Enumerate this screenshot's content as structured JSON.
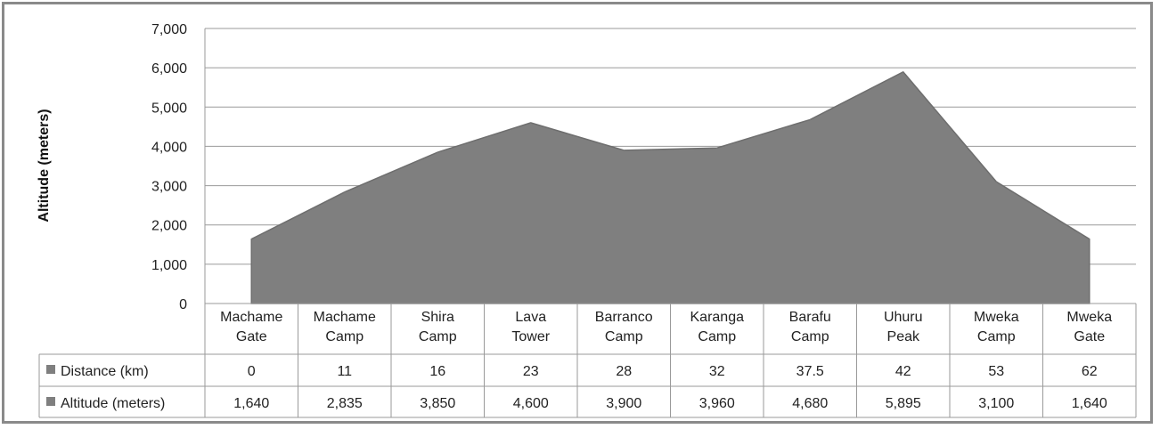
{
  "chart_data": {
    "type": "area",
    "title": "",
    "xlabel": "",
    "ylabel": "Altitude (meters)",
    "ylim": [
      0,
      7000
    ],
    "yticks": [
      "0",
      "1,000",
      "2,000",
      "3,000",
      "4,000",
      "5,000",
      "6,000",
      "7,000"
    ],
    "grid": true,
    "categories": [
      [
        "Machame",
        "Gate"
      ],
      [
        "Machame",
        "Camp"
      ],
      [
        "Shira",
        "Camp"
      ],
      [
        "Lava",
        "Tower"
      ],
      [
        "Barranco",
        "Camp"
      ],
      [
        "Karanga",
        "Camp"
      ],
      [
        "Barafu",
        "Camp"
      ],
      [
        "Uhuru",
        "Peak"
      ],
      [
        "Mweka",
        "Camp"
      ],
      [
        "Mweka",
        "Gate"
      ]
    ],
    "series": [
      {
        "name": "Altitude (meters)",
        "values": [
          1640,
          2835,
          3850,
          4600,
          3900,
          3960,
          4680,
          5895,
          3100,
          1640
        ]
      }
    ],
    "fill_color": "#7f7f7f",
    "table": {
      "rows": [
        {
          "label": "Distance (km)",
          "values": [
            "0",
            "11",
            "16",
            "23",
            "28",
            "32",
            "37.5",
            "42",
            "53",
            "62"
          ]
        },
        {
          "label": "Altitude (meters)",
          "values": [
            "1,640",
            "2,835",
            "3,850",
            "4,600",
            "3,900",
            "3,960",
            "4,680",
            "5,895",
            "3,100",
            "1,640"
          ]
        }
      ]
    }
  }
}
